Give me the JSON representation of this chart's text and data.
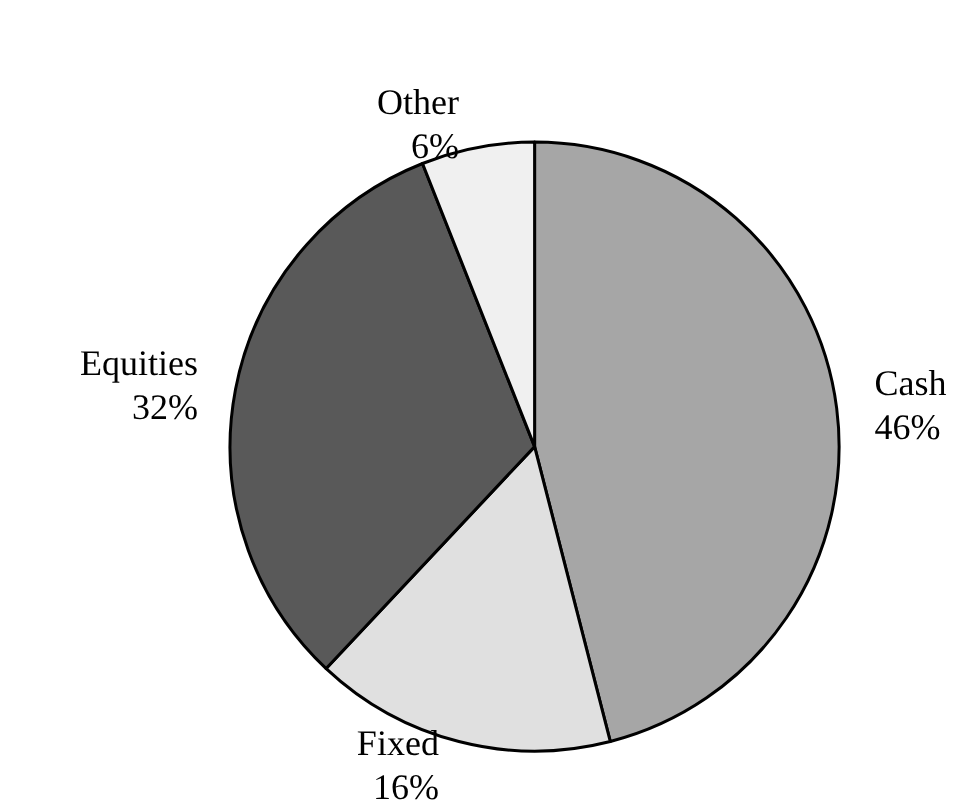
{
  "chart_data": {
    "type": "pie",
    "categories": [
      "Cash",
      "Fixed",
      "Equities",
      "Other"
    ],
    "values": [
      46,
      16,
      32,
      6
    ],
    "value_labels": [
      "46%",
      "16%",
      "32%",
      "6%"
    ],
    "colors": [
      "#a6a6a6",
      "#e0e0e0",
      "#595959",
      "#f0f0f0"
    ],
    "legend": false
  }
}
